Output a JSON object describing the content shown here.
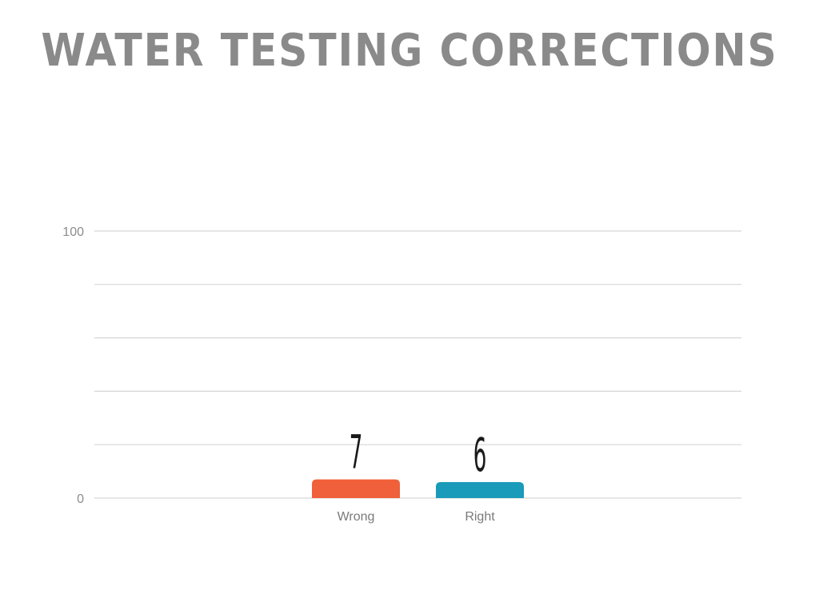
{
  "slide": {
    "title": "WATER TESTING CORRECTIONS"
  },
  "chart_data": {
    "type": "bar",
    "title": "WATER TESTING CORRECTIONS",
    "categories": [
      "Wrong",
      "Right"
    ],
    "values": [
      7,
      6
    ],
    "colors": [
      "#f0603a",
      "#1a9bba"
    ],
    "value_labels": [
      "7",
      "6"
    ],
    "xlabel": "",
    "ylabel": "",
    "ylim": [
      0,
      100
    ],
    "y_tick_labels": [
      "0",
      "100"
    ],
    "gridline_count": 5,
    "grid": true,
    "grid_color": "#d6d6d6"
  }
}
